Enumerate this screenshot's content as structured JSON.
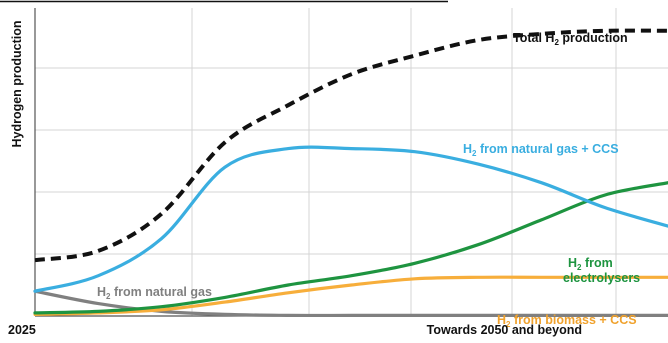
{
  "chart_data": {
    "type": "line",
    "title": "",
    "ylabel": "Hydrogen production",
    "x_start_label": "2025",
    "x_end_label": "Towards 2050 and beyond",
    "xlim": [
      0,
      100
    ],
    "ylim": [
      0,
      100
    ],
    "grid": true,
    "grid_vertical_count": 6,
    "grid_horizontal_count": 5,
    "series": [
      {
        "name": "Total H2 production",
        "label_main": "Total H",
        "label_sub": "2",
        "label_rest": " production",
        "color": "#111111",
        "style": "dashed",
        "x": [
          0,
          10,
          20,
          30,
          40,
          50,
          60,
          70,
          80,
          90,
          100
        ],
        "y": [
          18,
          21,
          33,
          56,
          68,
          78,
          84,
          89,
          91,
          92,
          92
        ]
      },
      {
        "name": "H2 from natural gas + CCS",
        "label_main": "H",
        "label_sub": "2",
        "label_rest": " from natural gas + CCS",
        "color": "#3aaee0",
        "style": "solid",
        "x": [
          0,
          10,
          20,
          30,
          40,
          50,
          60,
          70,
          80,
          90,
          100
        ],
        "y": [
          8,
          13,
          25,
          48,
          54,
          54,
          53,
          49,
          43,
          35,
          29
        ]
      },
      {
        "name": "H2 from electrolysers",
        "label_main": "H",
        "label_sub": "2",
        "label_rest": " from",
        "label_line2": "electrolysers",
        "color": "#1e9440",
        "style": "solid",
        "x": [
          0,
          10,
          20,
          30,
          40,
          50,
          60,
          70,
          80,
          90,
          100
        ],
        "y": [
          1,
          1.5,
          3,
          6,
          10,
          13,
          17,
          23,
          31,
          39,
          43
        ]
      },
      {
        "name": "H2 from natural gas",
        "label_main": "H",
        "label_sub": "2",
        "label_rest": " from natural gas",
        "color": "#808080",
        "style": "solid",
        "x": [
          0,
          10,
          20,
          30,
          40,
          50,
          60,
          70,
          80,
          90,
          100
        ],
        "y": [
          8,
          4,
          1.5,
          0.5,
          0.2,
          0.2,
          0.2,
          0.2,
          0.2,
          0.2,
          0.2
        ]
      },
      {
        "name": "H2 from biomass + CCS",
        "label_main": "H",
        "label_sub": "2",
        "label_rest": " from biomass + CCS",
        "color": "#f7ae3b",
        "style": "solid",
        "x": [
          0,
          10,
          20,
          30,
          40,
          50,
          60,
          70,
          80,
          90,
          100
        ],
        "y": [
          0.5,
          1,
          2,
          4.5,
          7.5,
          10,
          12,
          12.5,
          12.5,
          12.5,
          12.5
        ]
      }
    ]
  }
}
